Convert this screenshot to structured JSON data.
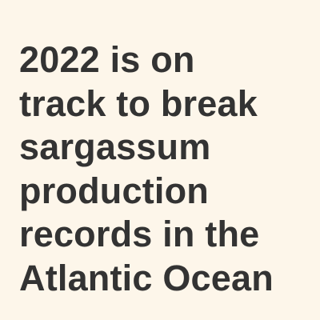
{
  "colors": {
    "background": "#fdf6ea",
    "text": "#333333"
  },
  "headline": {
    "lines": [
      "2022 is on",
      "track to break",
      "sargassum",
      "production",
      "records in the",
      "Atlantic Ocean"
    ]
  }
}
